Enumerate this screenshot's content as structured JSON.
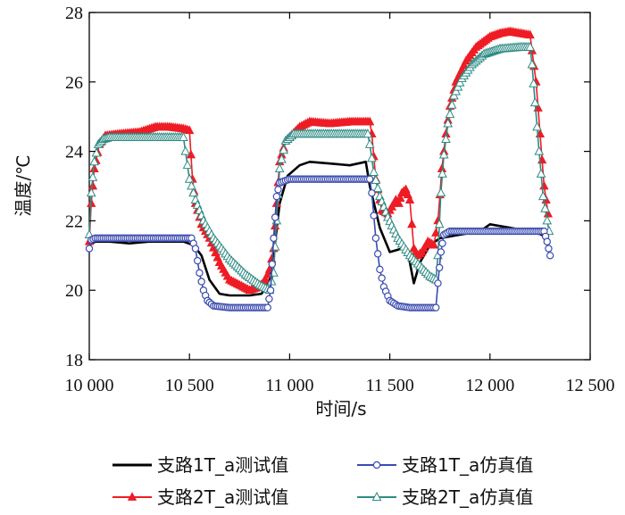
{
  "chart_data": {
    "type": "line",
    "xlabel": "时间/s",
    "ylabel": "温度/℃",
    "xlim": [
      10000,
      12500
    ],
    "ylim": [
      18,
      28
    ],
    "x_ticks": [
      10000,
      10500,
      11000,
      11500,
      12000,
      12500
    ],
    "x_tick_labels": [
      "10 000",
      "10 500",
      "11 000",
      "11 500",
      "12 000",
      "12 500"
    ],
    "y_ticks": [
      18,
      20,
      22,
      24,
      26,
      28
    ],
    "y_tick_labels": [
      "18",
      "20",
      "22",
      "24",
      "26",
      "28"
    ],
    "grid": false,
    "legend_position": "bottom",
    "series": [
      {
        "name": "支路1T_a测试值",
        "color": "#000000",
        "marker": "none",
        "points": [
          [
            10000,
            21.3
          ],
          [
            10030,
            21.4
          ],
          [
            10100,
            21.4
          ],
          [
            10200,
            21.35
          ],
          [
            10300,
            21.4
          ],
          [
            10400,
            21.4
          ],
          [
            10470,
            21.4
          ],
          [
            10520,
            21.3
          ],
          [
            10560,
            21.0
          ],
          [
            10600,
            20.3
          ],
          [
            10650,
            19.9
          ],
          [
            10700,
            19.85
          ],
          [
            10800,
            19.85
          ],
          [
            10860,
            19.9
          ],
          [
            10900,
            20.3
          ],
          [
            10920,
            21.0
          ],
          [
            10950,
            22.5
          ],
          [
            10990,
            23.3
          ],
          [
            11050,
            23.6
          ],
          [
            11100,
            23.7
          ],
          [
            11200,
            23.65
          ],
          [
            11300,
            23.6
          ],
          [
            11380,
            23.7
          ],
          [
            11400,
            23.0
          ],
          [
            11450,
            21.8
          ],
          [
            11500,
            21.1
          ],
          [
            11560,
            21.2
          ],
          [
            11590,
            21.1
          ],
          [
            11620,
            20.2
          ],
          [
            11650,
            20.8
          ],
          [
            11700,
            21.3
          ],
          [
            11750,
            21.5
          ],
          [
            11850,
            21.6
          ],
          [
            11950,
            21.7
          ],
          [
            12000,
            21.9
          ],
          [
            12100,
            21.8
          ],
          [
            12200,
            21.7
          ],
          [
            12260,
            21.6
          ],
          [
            12290,
            21.3
          ]
        ]
      },
      {
        "name": "支路1T_a仿真值",
        "color": "#3a4bb0",
        "marker": "circle",
        "points": [
          [
            10000,
            21.2
          ],
          [
            10010,
            21.45
          ],
          [
            10030,
            21.5
          ],
          [
            10100,
            21.5
          ],
          [
            10200,
            21.5
          ],
          [
            10300,
            21.5
          ],
          [
            10400,
            21.5
          ],
          [
            10510,
            21.5
          ],
          [
            10530,
            21.2
          ],
          [
            10550,
            20.5
          ],
          [
            10570,
            20.0
          ],
          [
            10590,
            19.7
          ],
          [
            10620,
            19.55
          ],
          [
            10700,
            19.5
          ],
          [
            10800,
            19.5
          ],
          [
            10890,
            19.5
          ],
          [
            10905,
            20.0
          ],
          [
            10920,
            21.5
          ],
          [
            10935,
            22.7
          ],
          [
            10950,
            23.1
          ],
          [
            11000,
            23.2
          ],
          [
            11100,
            23.2
          ],
          [
            11200,
            23.2
          ],
          [
            11300,
            23.2
          ],
          [
            11400,
            23.2
          ],
          [
            11410,
            22.8
          ],
          [
            11430,
            21.5
          ],
          [
            11450,
            20.6
          ],
          [
            11470,
            20.1
          ],
          [
            11500,
            19.7
          ],
          [
            11540,
            19.55
          ],
          [
            11600,
            19.5
          ],
          [
            11700,
            19.5
          ],
          [
            11730,
            19.5
          ],
          [
            11740,
            20.2
          ],
          [
            11755,
            21.1
          ],
          [
            11770,
            21.6
          ],
          [
            11800,
            21.7
          ],
          [
            11900,
            21.7
          ],
          [
            12000,
            21.7
          ],
          [
            12100,
            21.7
          ],
          [
            12200,
            21.7
          ],
          [
            12270,
            21.7
          ],
          [
            12285,
            21.4
          ],
          [
            12300,
            21.0
          ]
        ]
      },
      {
        "name": "支路2T_a测试值",
        "color": "#ee1c25",
        "marker": "triangle-filled",
        "points": [
          [
            10000,
            21.4
          ],
          [
            10010,
            22.5
          ],
          [
            10025,
            23.5
          ],
          [
            10050,
            24.2
          ],
          [
            10080,
            24.45
          ],
          [
            10150,
            24.5
          ],
          [
            10250,
            24.55
          ],
          [
            10330,
            24.7
          ],
          [
            10400,
            24.7
          ],
          [
            10470,
            24.65
          ],
          [
            10500,
            24.6
          ],
          [
            10515,
            23.2
          ],
          [
            10530,
            22.5
          ],
          [
            10560,
            21.9
          ],
          [
            10600,
            21.5
          ],
          [
            10650,
            20.8
          ],
          [
            10700,
            20.3
          ],
          [
            10800,
            20.0
          ],
          [
            10850,
            20.1
          ],
          [
            10880,
            20.3
          ],
          [
            10900,
            20.6
          ],
          [
            10920,
            21.2
          ],
          [
            10935,
            22.5
          ],
          [
            10950,
            23.7
          ],
          [
            10980,
            24.3
          ],
          [
            11050,
            24.7
          ],
          [
            11100,
            24.85
          ],
          [
            11200,
            24.8
          ],
          [
            11300,
            24.85
          ],
          [
            11400,
            24.85
          ],
          [
            11410,
            24.5
          ],
          [
            11430,
            23.2
          ],
          [
            11460,
            22.3
          ],
          [
            11490,
            22.2
          ],
          [
            11510,
            22.4
          ],
          [
            11530,
            22.6
          ],
          [
            11545,
            22.5
          ],
          [
            11560,
            22.8
          ],
          [
            11580,
            22.9
          ],
          [
            11600,
            22.6
          ],
          [
            11620,
            21.2
          ],
          [
            11640,
            21.0
          ],
          [
            11660,
            21.1
          ],
          [
            11690,
            21.4
          ],
          [
            11720,
            21.3
          ],
          [
            11740,
            22.0
          ],
          [
            11760,
            23.5
          ],
          [
            11780,
            24.5
          ],
          [
            11800,
            25.3
          ],
          [
            11830,
            26.0
          ],
          [
            11880,
            26.6
          ],
          [
            11930,
            27.0
          ],
          [
            12000,
            27.3
          ],
          [
            12050,
            27.4
          ],
          [
            12100,
            27.45
          ],
          [
            12150,
            27.4
          ],
          [
            12200,
            27.35
          ],
          [
            12230,
            26.0
          ],
          [
            12250,
            24.5
          ],
          [
            12270,
            23.0
          ],
          [
            12290,
            22.2
          ]
        ]
      },
      {
        "name": "支路2T_a仿真值",
        "color": "#2e8b84",
        "marker": "triangle-open",
        "points": [
          [
            10000,
            21.6
          ],
          [
            10010,
            22.8
          ],
          [
            10025,
            23.7
          ],
          [
            10045,
            24.2
          ],
          [
            10070,
            24.35
          ],
          [
            10100,
            24.4
          ],
          [
            10200,
            24.4
          ],
          [
            10300,
            24.4
          ],
          [
            10400,
            24.4
          ],
          [
            10470,
            24.4
          ],
          [
            10480,
            24.0
          ],
          [
            10500,
            23.2
          ],
          [
            10530,
            22.6
          ],
          [
            10570,
            22.0
          ],
          [
            10620,
            21.5
          ],
          [
            10700,
            20.9
          ],
          [
            10780,
            20.45
          ],
          [
            10850,
            20.15
          ],
          [
            10900,
            20.0
          ],
          [
            10920,
            20.5
          ],
          [
            10935,
            22.0
          ],
          [
            10950,
            23.5
          ],
          [
            10980,
            24.3
          ],
          [
            11020,
            24.5
          ],
          [
            11100,
            24.5
          ],
          [
            11200,
            24.5
          ],
          [
            11300,
            24.5
          ],
          [
            11390,
            24.5
          ],
          [
            11400,
            24.2
          ],
          [
            11420,
            23.4
          ],
          [
            11450,
            22.7
          ],
          [
            11490,
            22.1
          ],
          [
            11540,
            21.5
          ],
          [
            11600,
            21.0
          ],
          [
            11650,
            20.7
          ],
          [
            11700,
            20.4
          ],
          [
            11730,
            20.3
          ],
          [
            11740,
            21.0
          ],
          [
            11755,
            22.8
          ],
          [
            11770,
            23.9
          ],
          [
            11790,
            24.8
          ],
          [
            11820,
            25.6
          ],
          [
            11860,
            26.1
          ],
          [
            11910,
            26.5
          ],
          [
            11970,
            26.8
          ],
          [
            12050,
            26.95
          ],
          [
            12150,
            27.0
          ],
          [
            12200,
            27.0
          ],
          [
            12210,
            26.5
          ],
          [
            12225,
            25.4
          ],
          [
            12245,
            24.0
          ],
          [
            12265,
            22.7
          ],
          [
            12285,
            22.0
          ],
          [
            12295,
            21.7
          ]
        ]
      }
    ]
  }
}
